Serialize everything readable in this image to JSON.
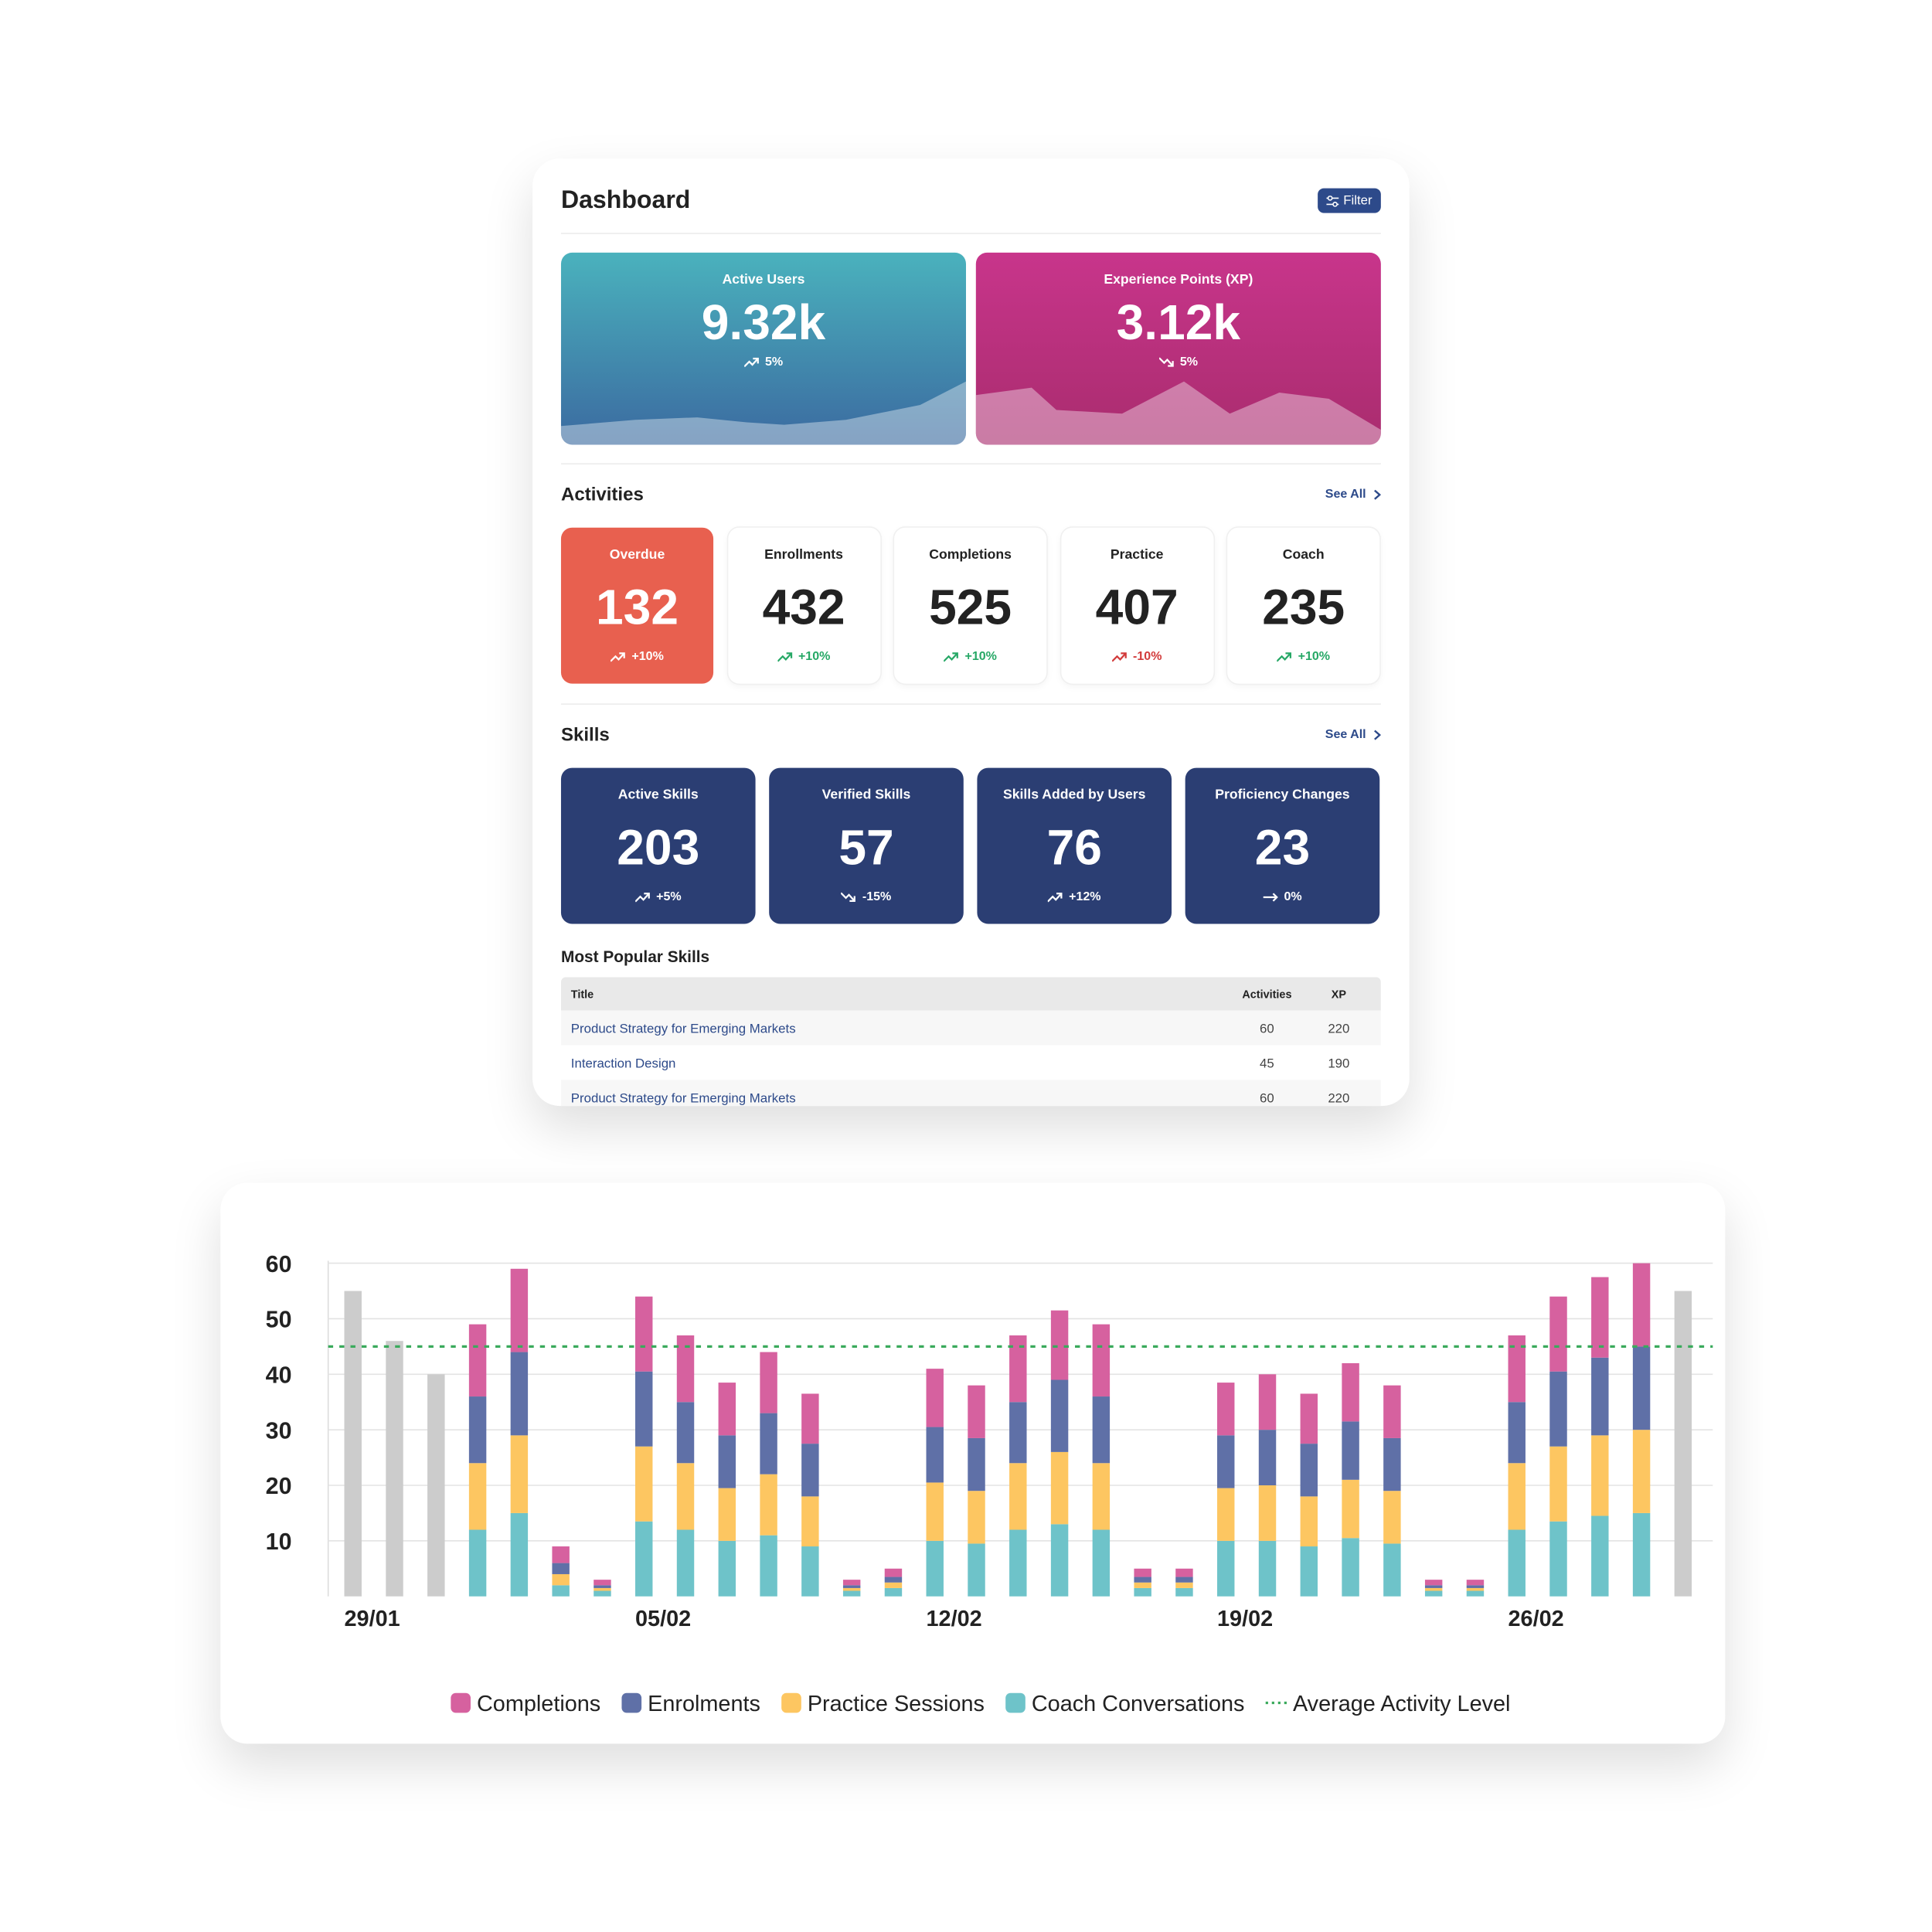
{
  "header": {
    "title": "Dashboard",
    "filter": "Filter"
  },
  "kpis": [
    {
      "label": "Active Users",
      "value": "9.32k",
      "change": "5%",
      "trend": "up"
    },
    {
      "label": "Experience Points (XP)",
      "value": "3.12k",
      "change": "5%",
      "trend": "down"
    }
  ],
  "activities": {
    "title": "Activities",
    "see_all": "See All",
    "items": [
      {
        "label": "Overdue",
        "value": 132,
        "change": "+10%",
        "trend": "up"
      },
      {
        "label": "Enrollments",
        "value": 432,
        "change": "+10%",
        "trend": "up"
      },
      {
        "label": "Completions",
        "value": 525,
        "change": "+10%",
        "trend": "up"
      },
      {
        "label": "Practice",
        "value": 407,
        "change": "-10%",
        "trend": "up"
      },
      {
        "label": "Coach",
        "value": 235,
        "change": "+10%",
        "trend": "up"
      }
    ]
  },
  "skills": {
    "title": "Skills",
    "see_all": "See All",
    "items": [
      {
        "label": "Active Skills",
        "value": 203,
        "change": "+5%",
        "trend": "up"
      },
      {
        "label": "Verified Skills",
        "value": 57,
        "change": "-15%",
        "trend": "down"
      },
      {
        "label": "Skills Added by Users",
        "value": 76,
        "change": "+12%",
        "trend": "up"
      },
      {
        "label": "Proficiency Changes",
        "value": 23,
        "change": "0%",
        "trend": "flat"
      }
    ]
  },
  "popular": {
    "title": "Most Popular Skills",
    "columns": [
      "Title",
      "Activities",
      "XP"
    ],
    "rows": [
      [
        "Product Strategy for Emerging Markets",
        60,
        220
      ],
      [
        "Interaction Design",
        45,
        190
      ],
      [
        "Product Strategy for Emerging Markets",
        60,
        220
      ]
    ]
  },
  "chart_data": {
    "type": "bar",
    "stacked": true,
    "categories": [
      "29/01",
      null,
      null,
      null,
      null,
      null,
      null,
      "05/02",
      null,
      null,
      null,
      null,
      null,
      null,
      "12/02",
      null,
      null,
      null,
      null,
      null,
      null,
      "19/02",
      null,
      null,
      null,
      null,
      null,
      null,
      "26/02",
      null,
      null,
      null,
      null
    ],
    "series": [
      {
        "name": "Completions",
        "color": "#d6619f",
        "values": [
          null,
          null,
          null,
          13,
          15,
          3,
          1,
          13.5,
          12,
          9.5,
          11,
          9,
          1,
          1.5,
          10.5,
          9.5,
          12,
          12.5,
          13,
          1.5,
          1.5,
          9.5,
          10,
          9,
          10.5,
          9.5,
          1,
          1,
          12,
          13.5,
          14.5,
          15,
          null
        ]
      },
      {
        "name": "Enrolments",
        "color": "#5f70a7",
        "values": [
          null,
          null,
          null,
          12,
          15,
          2,
          0.5,
          13.5,
          11,
          9.5,
          11,
          9.5,
          0.5,
          1,
          10,
          9.5,
          11,
          13,
          12,
          1,
          1,
          9.5,
          10,
          9.5,
          10.5,
          9.5,
          0.5,
          0.5,
          11,
          13.5,
          14,
          15,
          null
        ]
      },
      {
        "name": "Practice Sessions",
        "color": "#fdc661",
        "values": [
          null,
          null,
          null,
          12,
          14,
          2,
          0.5,
          13.5,
          12,
          9.5,
          11,
          9,
          0.5,
          1,
          10.5,
          9.5,
          12,
          13,
          12,
          1,
          1,
          9.5,
          10,
          9,
          10.5,
          9.5,
          0.5,
          0.5,
          12,
          13.5,
          14.5,
          15,
          null
        ]
      },
      {
        "name": "Coach Conversations",
        "color": "#6ec3c9",
        "values": [
          null,
          null,
          null,
          12,
          15,
          2,
          1,
          13.5,
          12,
          10,
          11,
          9,
          1,
          1.5,
          10,
          9.5,
          12,
          13,
          12,
          1.5,
          1.5,
          10,
          10,
          9,
          10.5,
          9.5,
          1,
          1,
          12,
          13.5,
          14.5,
          15,
          null
        ]
      },
      {
        "color": "#cccccc",
        "values": [
          55,
          46,
          40,
          null,
          null,
          null,
          null,
          null,
          null,
          null,
          null,
          null,
          null,
          null,
          null,
          null,
          null,
          null,
          null,
          null,
          null,
          null,
          null,
          null,
          null,
          null,
          null,
          null,
          null,
          null,
          null,
          null,
          55
        ]
      }
    ],
    "average": {
      "name": "Average Activity Level",
      "value": 45,
      "color": "#3aaa5c"
    },
    "ylim": [
      0,
      60
    ],
    "yticks": [
      10,
      20,
      30,
      40,
      50,
      60
    ],
    "grid": true
  }
}
